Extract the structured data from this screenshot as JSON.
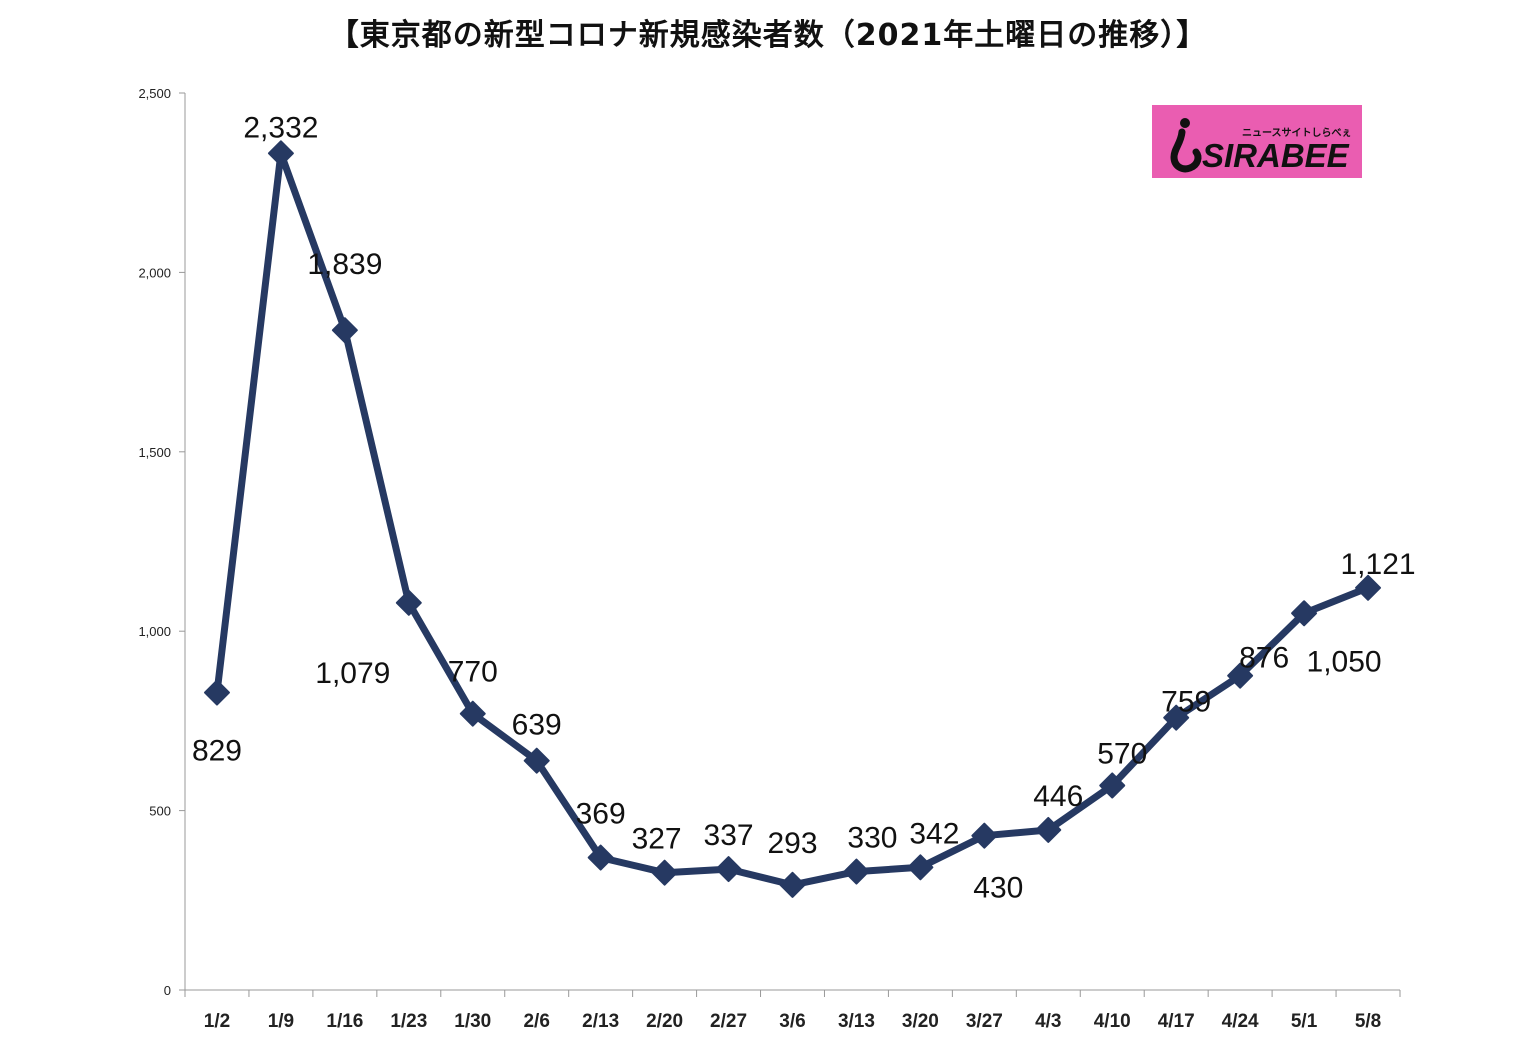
{
  "chart_data": {
    "type": "line",
    "title": "【東京都の新型コロナ新規感染者数（2021年土曜日の推移）】",
    "xlabel": "",
    "ylabel": "",
    "categories": [
      "1/2",
      "1/9",
      "1/16",
      "1/23",
      "1/30",
      "2/6",
      "2/13",
      "2/20",
      "2/27",
      "3/6",
      "3/13",
      "3/20",
      "3/27",
      "4/3",
      "4/10",
      "4/17",
      "4/24",
      "5/1",
      "5/8"
    ],
    "series": [
      {
        "values": [
          829,
          2332,
          1839,
          1079,
          770,
          639,
          369,
          327,
          337,
          293,
          330,
          342,
          430,
          446,
          570,
          759,
          876,
          1050,
          1121
        ],
        "data_labels": [
          "829",
          "2,332",
          "1,839",
          "1,079",
          "770",
          "639",
          "369",
          "327",
          "337",
          "293",
          "330",
          "342",
          "430",
          "446",
          "570",
          "759",
          "876",
          "1,050",
          "1,121"
        ]
      }
    ],
    "ylim": [
      0,
      2500
    ],
    "yticks": [
      0,
      500,
      1000,
      1500,
      2000,
      2500
    ],
    "ytick_labels": [
      "0",
      "500",
      "1,000",
      "1,500",
      "2,000",
      "2,500"
    ],
    "grid": false,
    "legend": "none",
    "line_color": "#263962"
  },
  "logo": {
    "text": "SIRABEE",
    "tagline": "ニュースサイトしらべぇ",
    "background": "#ea5db1"
  }
}
